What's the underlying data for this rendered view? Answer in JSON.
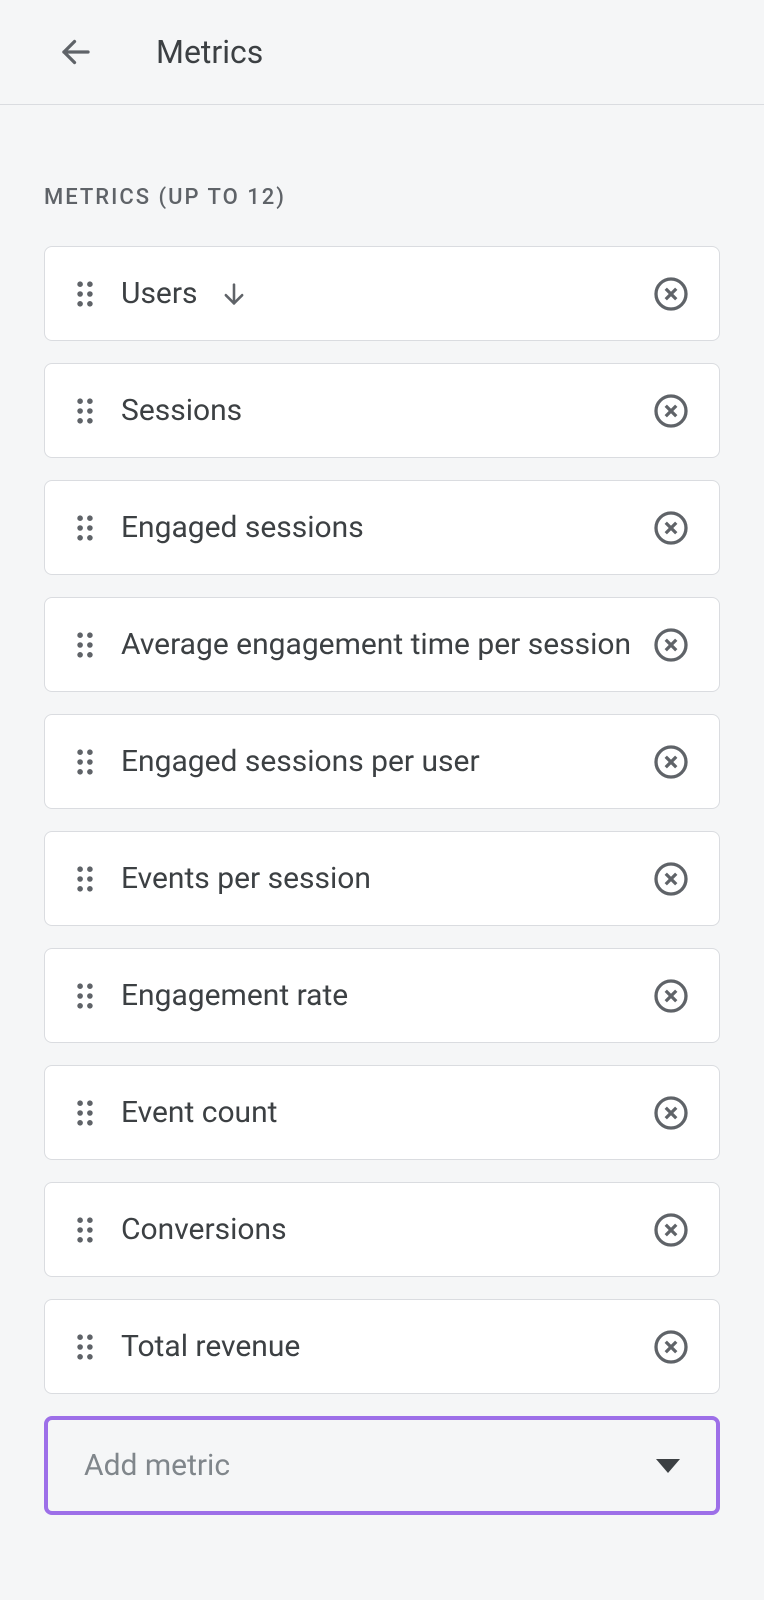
{
  "header": {
    "title": "Metrics"
  },
  "section": {
    "label": "Metrics (up to 12)"
  },
  "metrics": [
    {
      "label": "Users",
      "sorted": true
    },
    {
      "label": "Sessions",
      "sorted": false
    },
    {
      "label": "Engaged sessions",
      "sorted": false
    },
    {
      "label": "Average engagement time per session",
      "sorted": false
    },
    {
      "label": "Engaged sessions per user",
      "sorted": false
    },
    {
      "label": "Events per session",
      "sorted": false
    },
    {
      "label": "Engagement rate",
      "sorted": false
    },
    {
      "label": "Event count",
      "sorted": false
    },
    {
      "label": "Conversions",
      "sorted": false
    },
    {
      "label": "Total revenue",
      "sorted": false
    }
  ],
  "addMetric": {
    "label": "Add metric"
  },
  "colors": {
    "background": "#f5f6f7",
    "card_bg": "#ffffff",
    "border": "#dadce0",
    "text_primary": "#3c4043",
    "text_secondary": "#5f6368",
    "text_muted": "#80868b",
    "highlight_border": "#9d6fe8"
  }
}
